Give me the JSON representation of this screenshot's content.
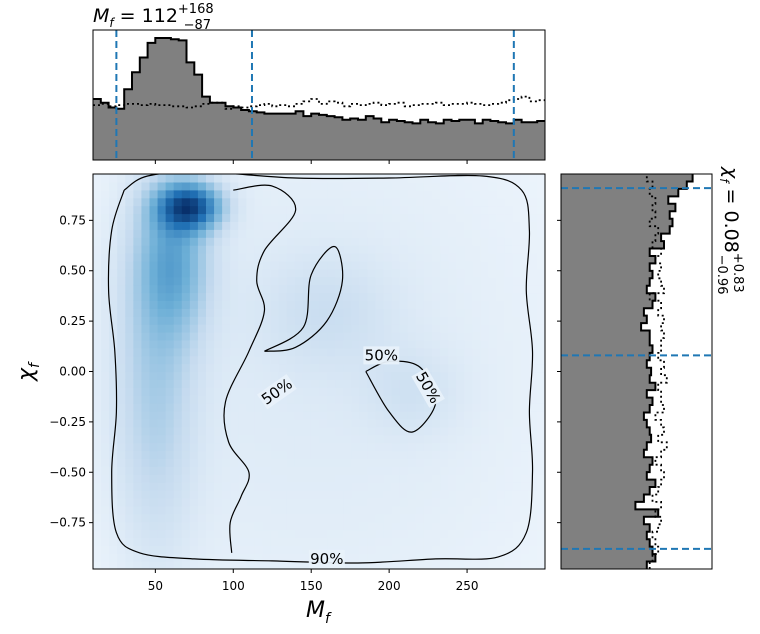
{
  "chart_data": [
    {
      "type": "heatmap",
      "panel": "joint-density",
      "x_param": "M_f",
      "y_param": "chi_f",
      "xlabel_symbol": "M",
      "xlabel_sub": "f",
      "ylabel_symbol": "χ",
      "ylabel_sub": "f",
      "xlim": [
        10,
        300
      ],
      "ylim": [
        -0.98,
        0.98
      ],
      "x_ticks": [
        50,
        100,
        150,
        200,
        250
      ],
      "x_tick_labels": [
        "50",
        "100",
        "150",
        "200",
        "250"
      ],
      "y_ticks": [
        -0.75,
        -0.5,
        -0.25,
        0.0,
        0.25,
        0.5,
        0.75
      ],
      "y_tick_labels": [
        "−0.75",
        "−0.50",
        "−0.25",
        "0.00",
        "0.25",
        "0.50",
        "0.75"
      ],
      "colormap": [
        "#f7fbff",
        "#c6dbef",
        "#6baed6",
        "#2171b5",
        "#08306b"
      ],
      "density_components": [
        {
          "x": 72,
          "y": 0.82,
          "sx": 14,
          "sy": 0.08,
          "w": 1.0
        },
        {
          "x": 62,
          "y": 0.55,
          "sx": 16,
          "sy": 0.25,
          "w": 0.45
        },
        {
          "x": 50,
          "y": 0.0,
          "sx": 18,
          "sy": 0.6,
          "w": 0.28
        },
        {
          "x": 160,
          "y": 0.3,
          "sx": 30,
          "sy": 0.2,
          "w": 0.12
        },
        {
          "x": 215,
          "y": -0.1,
          "sx": 22,
          "sy": 0.15,
          "w": 0.1
        },
        {
          "x": 150,
          "y": 0.0,
          "sx": 140,
          "sy": 1.2,
          "w": 0.12
        }
      ],
      "contours": [
        {
          "level_label": "90%",
          "label_pos": [
            160,
            -0.93
          ],
          "label_rotation": 0,
          "points": [
            [
              30,
              0.9
            ],
            [
              45,
              0.97
            ],
            [
              80,
              0.99
            ],
            [
              140,
              0.96
            ],
            [
              200,
              0.96
            ],
            [
              260,
              0.97
            ],
            [
              285,
              0.9
            ],
            [
              290,
              0.7
            ],
            [
              288,
              0.4
            ],
            [
              292,
              0.1
            ],
            [
              290,
              -0.2
            ],
            [
              292,
              -0.5
            ],
            [
              288,
              -0.8
            ],
            [
              270,
              -0.92
            ],
            [
              230,
              -0.93
            ],
            [
              180,
              -0.95
            ],
            [
              125,
              -0.94
            ],
            [
              75,
              -0.93
            ],
            [
              40,
              -0.9
            ],
            [
              25,
              -0.8
            ],
            [
              22,
              -0.5
            ],
            [
              25,
              -0.2
            ],
            [
              24,
              0.1
            ],
            [
              20,
              0.4
            ],
            [
              22,
              0.7
            ],
            [
              30,
              0.9
            ]
          ]
        },
        {
          "level_label": "50%",
          "label_pos": [
            128,
            -0.1
          ],
          "label_rotation": -35,
          "points": [
            [
              100,
              0.9
            ],
            [
              125,
              0.92
            ],
            [
              140,
              0.8
            ],
            [
              120,
              0.6
            ],
            [
              115,
              0.45
            ],
            [
              120,
              0.3
            ],
            [
              110,
              0.1
            ],
            [
              95,
              -0.15
            ],
            [
              97,
              -0.35
            ],
            [
              110,
              -0.5
            ],
            [
              105,
              -0.62
            ],
            [
              98,
              -0.75
            ],
            [
              99,
              -0.9
            ]
          ]
        },
        {
          "level_label": "50%",
          "label_pos": [
            195,
            0.08
          ],
          "label_rotation": 0,
          "points": [
            [
              120,
              0.1
            ],
            [
              145,
              0.22
            ],
            [
              150,
              0.48
            ],
            [
              165,
              0.62
            ],
            [
              170,
              0.45
            ],
            [
              160,
              0.25
            ],
            [
              140,
              0.12
            ],
            [
              120,
              0.1
            ]
          ]
        },
        {
          "level_label": "50%",
          "label_pos": [
            225,
            -0.08
          ],
          "label_rotation": 60,
          "points": [
            [
              185,
              0.0
            ],
            [
              200,
              -0.2
            ],
            [
              215,
              -0.3
            ],
            [
              230,
              -0.15
            ],
            [
              220,
              0.02
            ],
            [
              200,
              0.05
            ],
            [
              185,
              0.0
            ]
          ]
        }
      ]
    },
    {
      "type": "bar",
      "panel": "marginal-top",
      "param": "M_f",
      "summary_symbol": "M",
      "summary_sub": "f",
      "summary_median": "112",
      "summary_plus": "+168",
      "summary_minus": "−87",
      "quantile_lines": [
        25,
        112,
        280
      ],
      "x_range": [
        10,
        300
      ],
      "posterior_steps": [
        0.5,
        0.47,
        0.43,
        0.42,
        0.58,
        0.72,
        0.84,
        0.96,
        1.0,
        1.0,
        0.99,
        0.98,
        0.8,
        0.7,
        0.52,
        0.47,
        0.47,
        0.44,
        0.43,
        0.41,
        0.4,
        0.39,
        0.38,
        0.38,
        0.38,
        0.38,
        0.4,
        0.36,
        0.38,
        0.37,
        0.36,
        0.35,
        0.33,
        0.34,
        0.33,
        0.36,
        0.34,
        0.31,
        0.33,
        0.32,
        0.31,
        0.3,
        0.33,
        0.31,
        0.3,
        0.33,
        0.32,
        0.33,
        0.33,
        0.3,
        0.33,
        0.32,
        0.31,
        0.3,
        0.33,
        0.31,
        0.31,
        0.32
      ],
      "prior_steps": [
        0.45,
        0.46,
        0.44,
        0.45,
        0.46,
        0.46,
        0.45,
        0.46,
        0.45,
        0.45,
        0.44,
        0.44,
        0.43,
        0.44,
        0.46,
        0.47,
        0.47,
        0.42,
        0.44,
        0.43,
        0.44,
        0.45,
        0.46,
        0.44,
        0.45,
        0.44,
        0.46,
        0.48,
        0.5,
        0.46,
        0.48,
        0.47,
        0.44,
        0.46,
        0.45,
        0.46,
        0.47,
        0.45,
        0.46,
        0.47,
        0.44,
        0.45,
        0.46,
        0.46,
        0.47,
        0.45,
        0.46,
        0.46,
        0.47,
        0.46,
        0.45,
        0.46,
        0.47,
        0.49,
        0.5,
        0.52,
        0.48,
        0.49
      ]
    },
    {
      "type": "bar",
      "panel": "marginal-right",
      "param": "chi_f",
      "summary_symbol": "χ",
      "summary_sub": "f",
      "summary_median": "0.08",
      "summary_plus": "+0.83",
      "summary_minus": "−0.96",
      "quantile_lines": [
        -0.88,
        0.08,
        0.91
      ],
      "y_range": [
        -0.98,
        0.98
      ],
      "posterior_steps": [
        0.6,
        0.66,
        0.64,
        0.62,
        0.6,
        0.62,
        0.58,
        0.68,
        0.52,
        0.58,
        0.62,
        0.66,
        0.6,
        0.62,
        0.64,
        0.58,
        0.6,
        0.63,
        0.62,
        0.6,
        0.58,
        0.62,
        0.64,
        0.6,
        0.66,
        0.62,
        0.63,
        0.6,
        0.62,
        0.64,
        0.62,
        0.62,
        0.56,
        0.6,
        0.58,
        0.64,
        0.66,
        0.6,
        0.62,
        0.64,
        0.62,
        0.66,
        0.62,
        0.72,
        0.7,
        0.76,
        0.78,
        0.76,
        0.8,
        0.75,
        0.82,
        0.88,
        0.92
      ],
      "prior_steps": [
        0.62,
        0.64,
        0.68,
        0.66,
        0.64,
        0.68,
        0.7,
        0.66,
        0.7,
        0.64,
        0.68,
        0.7,
        0.72,
        0.7,
        0.66,
        0.7,
        0.74,
        0.68,
        0.72,
        0.7,
        0.66,
        0.72,
        0.7,
        0.7,
        0.68,
        0.74,
        0.7,
        0.72,
        0.68,
        0.7,
        0.7,
        0.72,
        0.7,
        0.72,
        0.68,
        0.7,
        0.62,
        0.72,
        0.7,
        0.68,
        0.7,
        0.66,
        0.7,
        0.64,
        0.66,
        0.68,
        0.62,
        0.66,
        0.64,
        0.66,
        0.62,
        0.64,
        0.6
      ]
    }
  ]
}
